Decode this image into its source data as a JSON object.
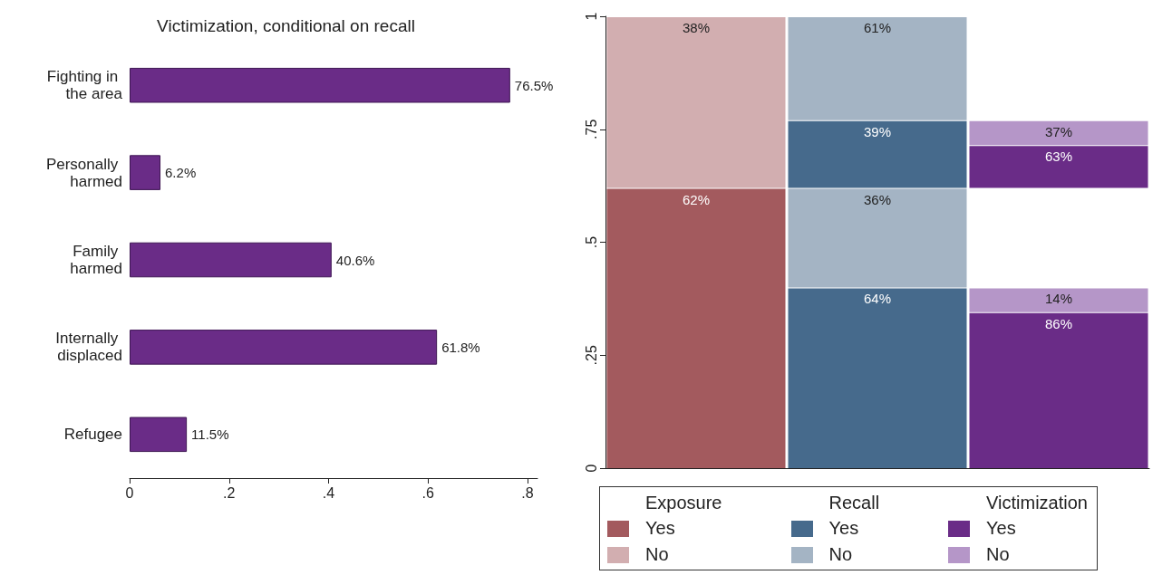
{
  "chart_data": [
    {
      "type": "bar",
      "orientation": "horizontal",
      "title": "Victimization, conditional on recall",
      "categories": [
        "Fighting in the area",
        "Personally harmed",
        "Family harmed",
        "Internally displaced",
        "Refugee"
      ],
      "values": [
        0.765,
        0.062,
        0.406,
        0.618,
        0.115
      ],
      "value_labels": [
        "76.5%",
        "6.2%",
        "40.6%",
        "61.8%",
        "11.5%"
      ],
      "color": "#6a2c87",
      "xlim": [
        0,
        0.82
      ],
      "xticks": [
        {
          "value": 0,
          "label": "0"
        },
        {
          "value": 0.2,
          "label": ".2"
        },
        {
          "value": 0.4,
          "label": ".4"
        },
        {
          "value": 0.6,
          "label": ".6"
        },
        {
          "value": 0.8,
          "label": ".8"
        }
      ],
      "grid": false
    },
    {
      "type": "bar",
      "categories": [
        null,
        null,
        null
      ],
      "tick_labels": "y",
      "ylim": [
        0,
        1
      ],
      "yticks": [
        {
          "value": 0,
          "label": "0"
        },
        {
          "value": 0.25,
          "label": ".25"
        },
        {
          "value": 0.5,
          "label": ".5"
        },
        {
          "value": 0.75,
          "label": ".75"
        },
        {
          "value": 1,
          "label": "1"
        }
      ],
      "grid": false,
      "legend": "bottom",
      "annotations": [
        "Exposure",
        "Recall",
        "Victimization",
        {
          "text": "62%",
          "y": 0.62
        },
        {
          "text": "38%",
          "y": 1
        },
        {
          "text": "64%",
          "y": 0.4
        },
        {
          "text": "36%",
          "y": 0.62
        },
        {
          "text": "39%",
          "y": 0.77
        },
        {
          "text": "61%",
          "y": 1
        },
        {
          "text": "86%",
          "y": 0.345
        },
        {
          "text": "14%",
          "y": 0.4
        },
        {
          "text": "63%",
          "y": 0.715
        },
        {
          "text": "37%",
          "y": 0.77
        }
      ],
      "series": [
        {
          "name": "Yes",
          "color": "#a35a5e",
          "values": [
            0.62,
            null,
            null
          ],
          "base": [
            0,
            null,
            null
          ]
        },
        {
          "name": "No",
          "color": "#d2aeb0",
          "values": [
            0.38,
            null,
            null
          ],
          "base": [
            0.62,
            null,
            null
          ]
        },
        {
          "name": "Yes",
          "color": "#466a8c",
          "values": [
            null,
            0.4,
            null
          ],
          "base": [
            null,
            0,
            null
          ]
        },
        {
          "name": "No",
          "color": "#a4b4c4",
          "values": [
            null,
            0.22,
            null
          ],
          "base": [
            null,
            0.4,
            null
          ]
        },
        {
          "color": "#466a8c",
          "values": [
            null,
            0.15,
            null
          ],
          "base": [
            null,
            0.62,
            null
          ]
        },
        {
          "color": "#a4b4c4",
          "values": [
            null,
            0.23,
            null
          ],
          "base": [
            null,
            0.77,
            null
          ]
        },
        {
          "name": "Yes",
          "color": "#6a2c87",
          "values": [
            null,
            null,
            0.345
          ],
          "base": [
            null,
            null,
            0
          ]
        },
        {
          "name": "No",
          "color": "#b596c8",
          "values": [
            null,
            null,
            0.055
          ],
          "base": [
            null,
            null,
            0.345
          ]
        },
        {
          "color": "#6a2c87",
          "values": [
            null,
            null,
            0.095
          ],
          "base": [
            null,
            null,
            0.62
          ]
        },
        {
          "color": "#b596c8",
          "values": [
            null,
            null,
            0.055
          ],
          "base": [
            null,
            null,
            0.715
          ]
        }
      ]
    }
  ]
}
